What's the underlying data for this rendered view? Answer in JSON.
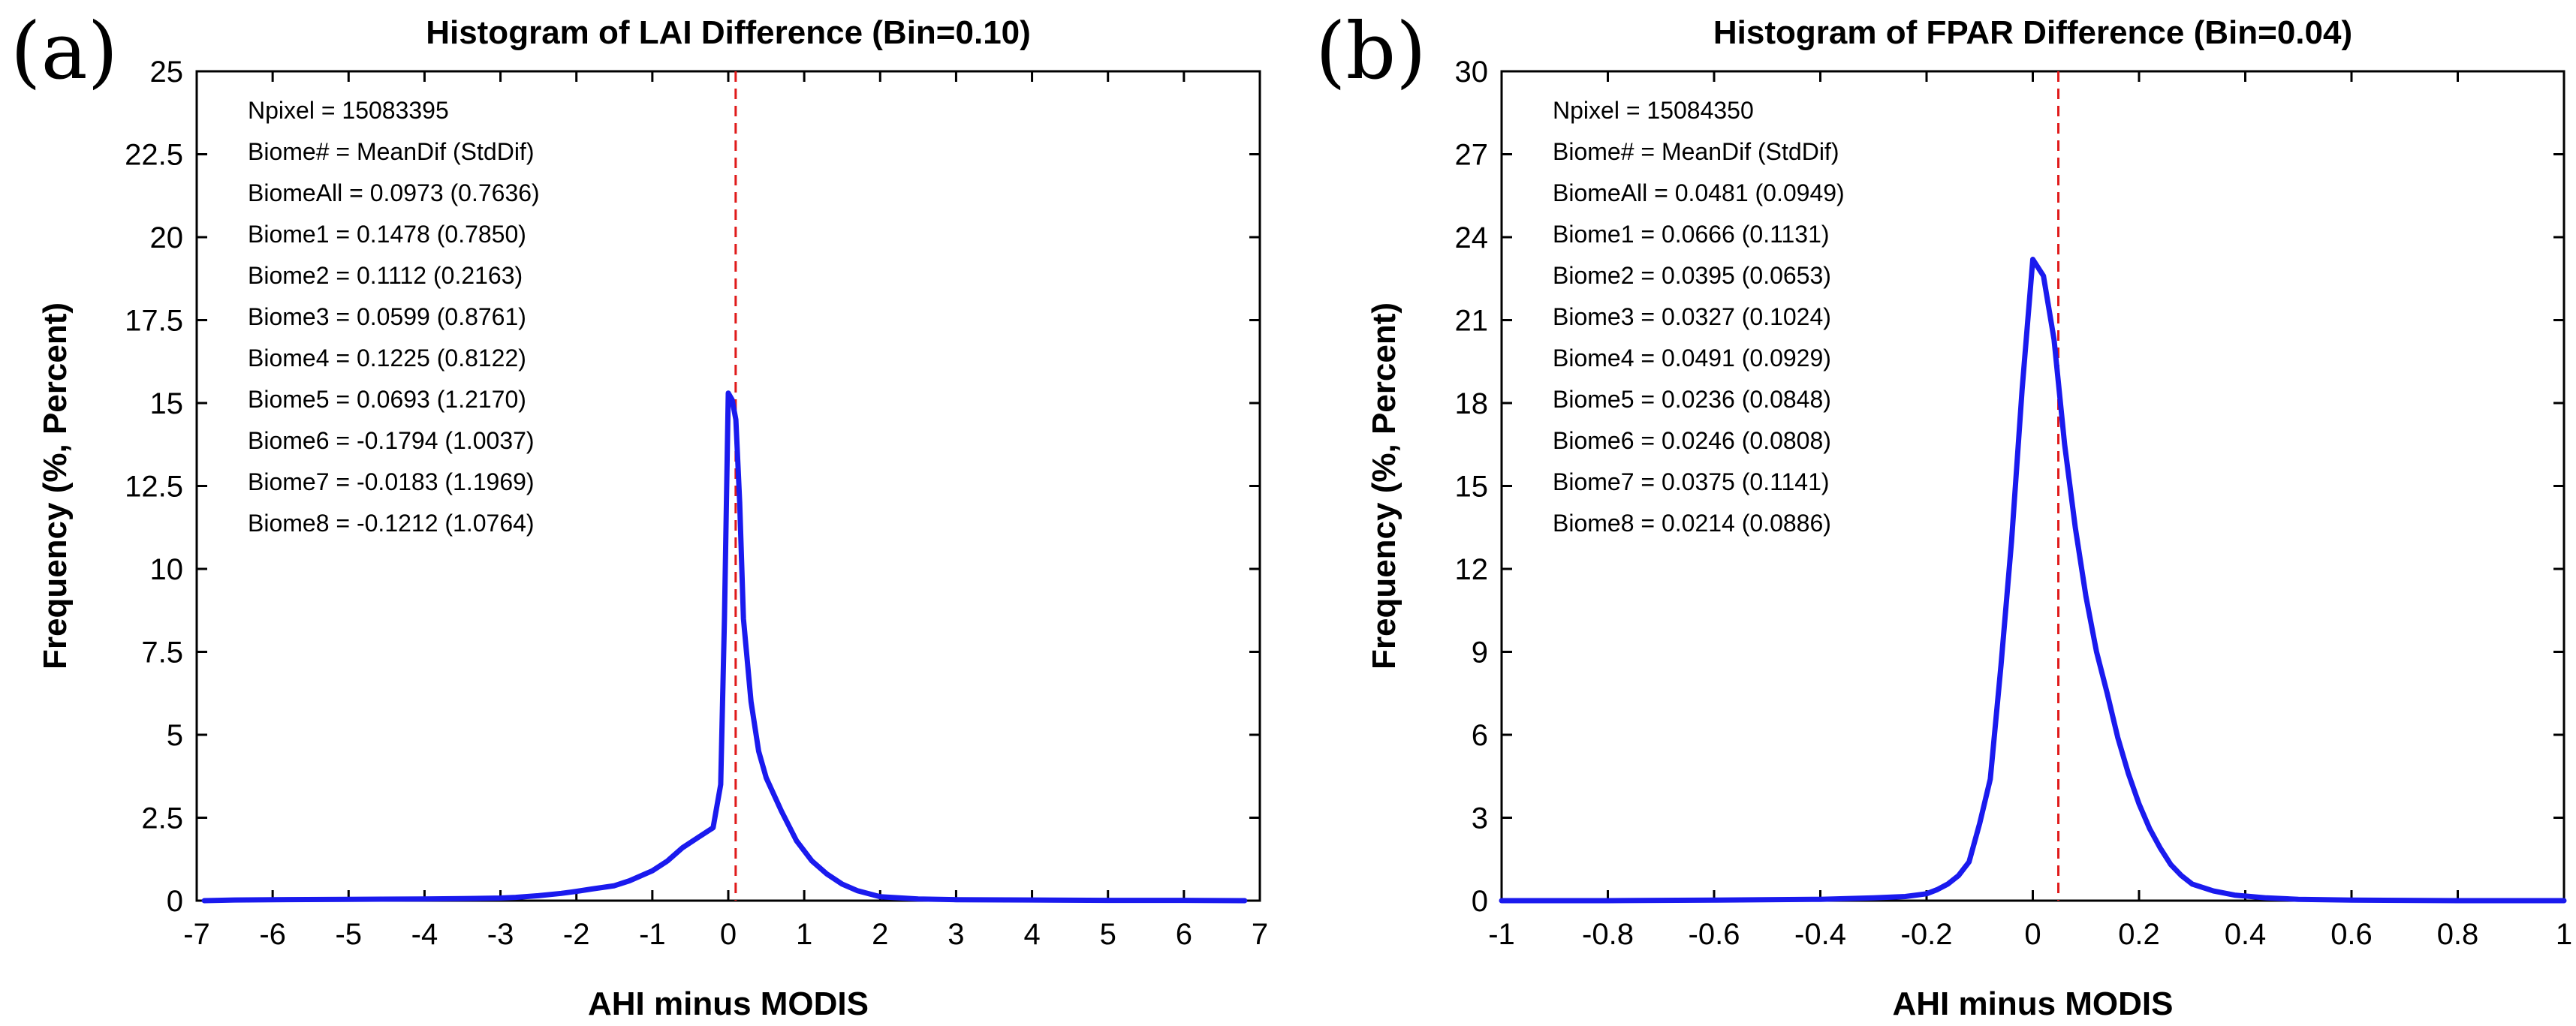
{
  "chart_data": [
    {
      "panel_label": "(a)",
      "type": "line",
      "title": "Histogram of LAI Difference (Bin=0.10)",
      "xlabel": "AHI minus MODIS",
      "ylabel": "Frequency (%, Percent)",
      "xlim": [
        -7,
        7
      ],
      "ylim": [
        0,
        25
      ],
      "xticks": [
        -7,
        -6,
        -5,
        -4,
        -3,
        -2,
        -1,
        0,
        1,
        2,
        3,
        4,
        5,
        6,
        7
      ],
      "yticks": [
        0,
        2.5,
        5,
        7.5,
        10,
        12.5,
        15,
        17.5,
        20,
        22.5,
        25
      ],
      "ytick_labels": [
        "0",
        "2.5",
        "5",
        "7.5",
        "10",
        "12.5",
        "15",
        "17.5",
        "20",
        "22.5",
        "25"
      ],
      "reference_line_x": 0.0973,
      "series_color": "#1a1aee",
      "reference_color": "#e01a1a",
      "series": [
        {
          "name": "LAI difference frequency",
          "x": [
            -6.9,
            -6.5,
            -6,
            -5,
            -4,
            -3.5,
            -3,
            -2.8,
            -2.5,
            -2.2,
            -2,
            -1.8,
            -1.5,
            -1.3,
            -1,
            -0.8,
            -0.6,
            -0.4,
            -0.2,
            -0.1,
            -0.05,
            0,
            0.05,
            0.1,
            0.15,
            0.2,
            0.3,
            0.4,
            0.5,
            0.7,
            0.9,
            1.1,
            1.3,
            1.5,
            1.7,
            2,
            2.5,
            3,
            4,
            5,
            6,
            6.8
          ],
          "y": [
            0,
            0.02,
            0.03,
            0.04,
            0.05,
            0.06,
            0.08,
            0.1,
            0.15,
            0.22,
            0.28,
            0.35,
            0.45,
            0.6,
            0.9,
            1.2,
            1.6,
            1.9,
            2.2,
            3.5,
            8.5,
            15.3,
            15.1,
            14.5,
            12,
            8.5,
            6,
            4.5,
            3.7,
            2.7,
            1.8,
            1.2,
            0.8,
            0.5,
            0.3,
            0.12,
            0.05,
            0.03,
            0.02,
            0.01,
            0.01,
            0
          ]
        }
      ],
      "stats": [
        "Npixel = 15083395",
        "Biome# = MeanDif (StdDif)",
        "BiomeAll = 0.0973 (0.7636)",
        "Biome1 = 0.1478 (0.7850)",
        "Biome2 = 0.1112 (0.2163)",
        "Biome3 = 0.0599 (0.8761)",
        "Biome4 = 0.1225 (0.8122)",
        "Biome5 = 0.0693 (1.2170)",
        "Biome6 = -0.1794 (1.0037)",
        "Biome7 = -0.0183 (1.1969)",
        "Biome8 = -0.1212 (1.0764)"
      ]
    },
    {
      "panel_label": "(b)",
      "type": "line",
      "title": "Histogram of FPAR Difference (Bin=0.04)",
      "xlabel": "AHI minus MODIS",
      "ylabel": "Frequency (%, Percent)",
      "xlim": [
        -1,
        1
      ],
      "ylim": [
        0,
        30
      ],
      "xticks": [
        -1,
        -0.8,
        -0.6,
        -0.4,
        -0.2,
        0,
        0.2,
        0.4,
        0.6,
        0.8,
        1
      ],
      "yticks": [
        0,
        3,
        6,
        9,
        12,
        15,
        18,
        21,
        24,
        27,
        30
      ],
      "ytick_labels": [
        "0",
        "3",
        "6",
        "9",
        "12",
        "15",
        "18",
        "21",
        "24",
        "27",
        "30"
      ],
      "reference_line_x": 0.0481,
      "series_color": "#1a1aee",
      "reference_color": "#e01a1a",
      "series": [
        {
          "name": "FPAR difference frequency",
          "x": [
            -1,
            -0.8,
            -0.6,
            -0.4,
            -0.3,
            -0.24,
            -0.2,
            -0.18,
            -0.16,
            -0.14,
            -0.12,
            -0.1,
            -0.08,
            -0.06,
            -0.04,
            -0.02,
            0,
            0.02,
            0.04,
            0.06,
            0.08,
            0.1,
            0.12,
            0.14,
            0.16,
            0.18,
            0.2,
            0.22,
            0.24,
            0.26,
            0.28,
            0.3,
            0.34,
            0.38,
            0.44,
            0.5,
            0.6,
            0.8,
            1
          ],
          "y": [
            0,
            0,
            0.02,
            0.05,
            0.1,
            0.15,
            0.25,
            0.4,
            0.6,
            0.9,
            1.4,
            2.8,
            4.4,
            8.5,
            13,
            18.5,
            23.2,
            22.6,
            20.3,
            16.5,
            13.5,
            11,
            9,
            7.5,
            5.9,
            4.6,
            3.5,
            2.6,
            1.9,
            1.3,
            0.9,
            0.6,
            0.35,
            0.2,
            0.1,
            0.05,
            0.02,
            0,
            0
          ]
        }
      ],
      "stats": [
        "Npixel = 15084350",
        "Biome# = MeanDif (StdDif)",
        "BiomeAll = 0.0481 (0.0949)",
        "Biome1 = 0.0666 (0.1131)",
        "Biome2 = 0.0395 (0.0653)",
        "Biome3 = 0.0327 (0.1024)",
        "Biome4 = 0.0491 (0.0929)",
        "Biome5 = 0.0236 (0.0848)",
        "Biome6 = 0.0246 (0.0808)",
        "Biome7 = 0.0375 (0.1141)",
        "Biome8 = 0.0214 (0.0886)"
      ]
    }
  ]
}
